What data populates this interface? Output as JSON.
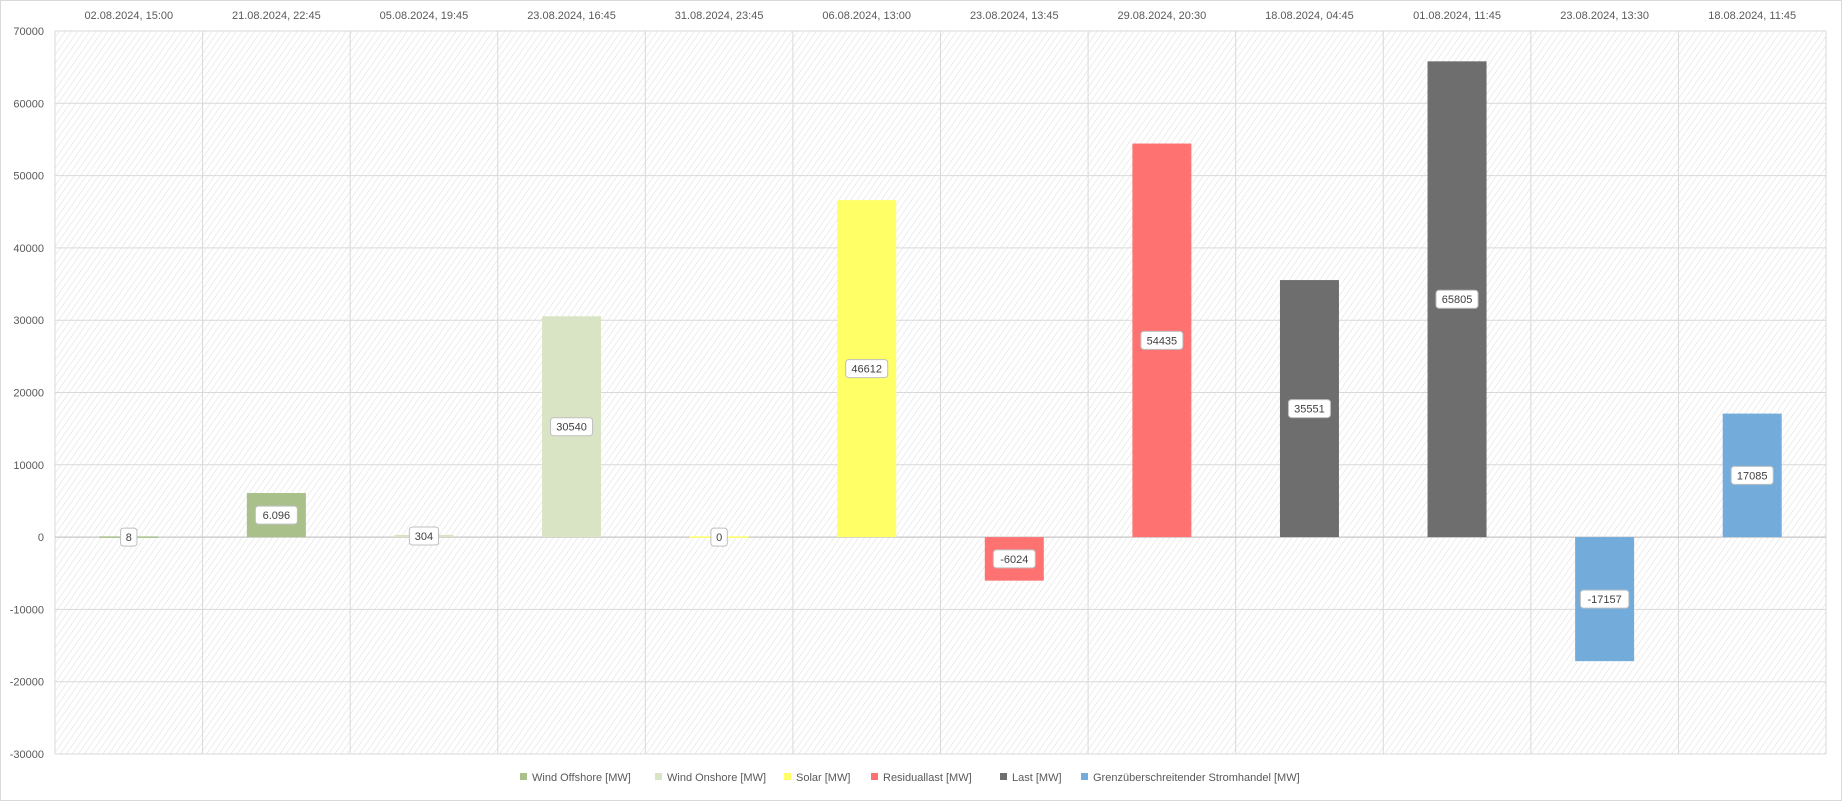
{
  "chart_data": {
    "type": "bar",
    "title": "",
    "xlabel": "",
    "ylabel": "",
    "ylim": [
      -30000,
      70000
    ],
    "yticks": [
      "70000",
      "60000",
      "50000",
      "40000",
      "30000",
      "20000",
      "10000",
      "0",
      "-10000",
      "-20000",
      "-30000"
    ],
    "ytick_values": [
      70000,
      60000,
      50000,
      40000,
      30000,
      20000,
      10000,
      0,
      -10000,
      -20000,
      -30000
    ],
    "grid": true,
    "legend_position": "bottom",
    "categories": [
      "02.08.2024, 15:00",
      "21.08.2024, 22:45",
      "05.08.2024, 19:45",
      "23.08.2024, 16:45",
      "31.08.2024, 23:45",
      "06.08.2024, 13:00",
      "23.08.2024, 13:45",
      "29.08.2024, 20:30",
      "18.08.2024, 04:45",
      "01.08.2024, 11:45",
      "23.08.2024, 13:30",
      "18.08.2024, 11:45"
    ],
    "series": [
      {
        "name": "Wind Offshore [MW]",
        "color": "#a9c08a",
        "points": [
          {
            "category": 0,
            "value": 8,
            "label": "8"
          },
          {
            "category": 1,
            "value": 6096,
            "label": "6.096"
          }
        ]
      },
      {
        "name": "Wind Onshore [MW]",
        "color": "#d8e4c4",
        "points": [
          {
            "category": 2,
            "value": 304,
            "label": "304"
          },
          {
            "category": 3,
            "value": 30540,
            "label": "30540"
          }
        ]
      },
      {
        "name": "Solar [MW]",
        "color": "#ffff66",
        "points": [
          {
            "category": 4,
            "value": 0,
            "label": "0"
          },
          {
            "category": 5,
            "value": 46612,
            "label": "46612"
          }
        ]
      },
      {
        "name": "Residuallast [MW]",
        "color": "#ff7272",
        "points": [
          {
            "category": 6,
            "value": -6024,
            "label": "-6024"
          },
          {
            "category": 7,
            "value": 54435,
            "label": "54435"
          }
        ]
      },
      {
        "name": "Last [MW]",
        "color": "#6e6e6e",
        "points": [
          {
            "category": 8,
            "value": 35551,
            "label": "35551"
          },
          {
            "category": 9,
            "value": 65805,
            "label": "65805"
          }
        ]
      },
      {
        "name": "Grenzüberschreitender Stromhandel [MW]",
        "color": "#73acdb",
        "points": [
          {
            "category": 10,
            "value": -17157,
            "label": "-17157"
          },
          {
            "category": 11,
            "value": 17085,
            "label": "17085"
          }
        ]
      }
    ]
  }
}
